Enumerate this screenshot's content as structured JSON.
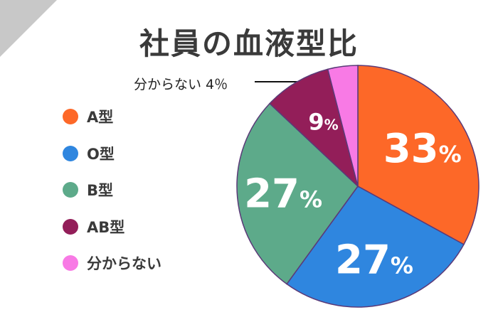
{
  "chart_data": {
    "type": "pie",
    "title": "社員の血液型比",
    "categories": [
      "A型",
      "O型",
      "B型",
      "AB型",
      "分からない"
    ],
    "values": [
      33,
      27,
      27,
      9,
      4
    ],
    "unit": "%",
    "colors": [
      "#fd6828",
      "#2f86df",
      "#5daa8a",
      "#931e59",
      "#f87ae5"
    ],
    "data_labels": [
      "33",
      "27",
      "27",
      "9",
      ""
    ],
    "callout": "分からない 4％",
    "legend_position": "left"
  },
  "decoration_color": "#c8c8c8"
}
